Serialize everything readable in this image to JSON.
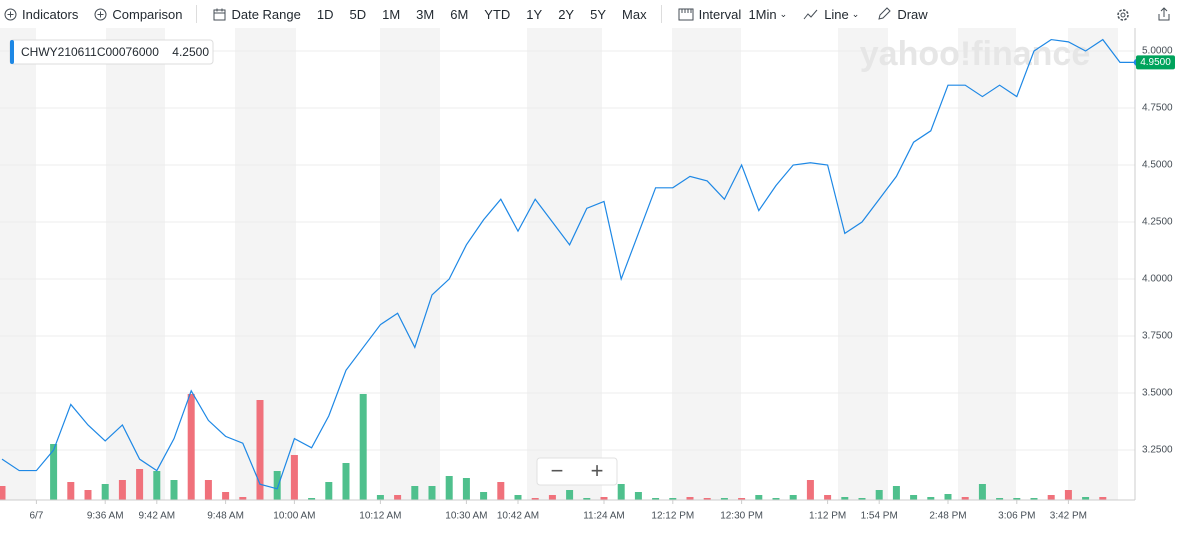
{
  "toolbar": {
    "indicators": "Indicators",
    "comparison": "Comparison",
    "date_range": "Date Range",
    "ranges": [
      "1D",
      "5D",
      "1M",
      "3M",
      "6M",
      "YTD",
      "1Y",
      "2Y",
      "5Y",
      "Max"
    ],
    "interval": "Interval",
    "interval_value": "1Min",
    "chart_type": "Line",
    "draw": "Draw"
  },
  "watermark": "yahoo!finance",
  "zoom_controls": [
    "−",
    "+"
  ],
  "chart_data": {
    "type": "line",
    "symbol": "CHWY210611C00076000",
    "hover_value": 4.25,
    "hover_value_label": "4.2500",
    "last_value": 4.95,
    "last_value_label": "4.9500",
    "categories": [
      null,
      null,
      "6/7",
      null,
      null,
      null,
      "9:36 AM",
      null,
      null,
      "9:42 AM",
      null,
      null,
      null,
      "9:48 AM",
      null,
      null,
      null,
      "10:00 AM",
      null,
      null,
      null,
      null,
      "10:12 AM",
      null,
      null,
      null,
      null,
      "10:30 AM",
      null,
      null,
      "10:42 AM",
      null,
      null,
      null,
      null,
      "11:24 AM",
      null,
      null,
      null,
      "12:12 PM",
      null,
      null,
      null,
      "12:30 PM",
      null,
      null,
      null,
      null,
      "1:12 PM",
      null,
      null,
      "1:54 PM",
      null,
      null,
      null,
      "2:48 PM",
      null,
      null,
      null,
      "3:06 PM",
      null,
      null,
      "3:42 PM",
      null,
      null,
      null,
      null
    ],
    "series": [
      {
        "color": "#1e88e5",
        "values": [
          3.21,
          3.16,
          3.16,
          3.25,
          3.45,
          3.36,
          3.29,
          3.36,
          3.21,
          3.16,
          3.3,
          3.51,
          3.38,
          3.31,
          3.28,
          3.1,
          3.08,
          3.3,
          3.26,
          3.4,
          3.6,
          3.7,
          3.8,
          3.85,
          3.7,
          3.93,
          4.0,
          4.15,
          4.26,
          4.35,
          4.21,
          4.35,
          4.25,
          4.15,
          4.31,
          4.34,
          4.0,
          4.2,
          4.4,
          4.4,
          4.45,
          4.43,
          4.35,
          4.5,
          4.3,
          4.41,
          4.5,
          4.51,
          4.5,
          4.2,
          4.25,
          4.35,
          4.45,
          4.6,
          4.65,
          4.85,
          4.85,
          4.8,
          4.85,
          4.8,
          5.0,
          5.05,
          5.04,
          5.0,
          5.05,
          4.95,
          4.95
        ]
      }
    ],
    "volume": {
      "values": [
        14,
        0,
        0,
        56,
        18,
        10,
        16,
        20,
        31,
        29,
        20,
        106,
        20,
        8,
        3,
        100,
        29,
        45,
        2,
        18,
        37,
        106,
        5,
        5,
        14,
        14,
        24,
        22,
        8,
        18,
        5,
        2,
        5,
        10,
        2,
        3,
        16,
        8,
        2,
        2,
        3,
        2,
        2,
        2,
        5,
        2,
        5,
        20,
        5,
        3,
        2,
        10,
        14,
        5,
        3,
        6,
        3,
        16,
        2,
        2,
        2,
        5,
        10,
        3,
        3,
        0,
        0
      ],
      "colors": [
        "#f0717b",
        "#f0717b",
        "#f0717b",
        "#4fc08d",
        "#f0717b",
        "#f0717b",
        "#4fc08d",
        "#f0717b",
        "#f0717b",
        "#4fc08d",
        "#4fc08d",
        "#f0717b",
        "#f0717b",
        "#f0717b",
        "#f0717b",
        "#f0717b",
        "#4fc08d",
        "#f0717b",
        "#4fc08d",
        "#4fc08d",
        "#4fc08d",
        "#4fc08d",
        "#4fc08d",
        "#f0717b",
        "#4fc08d",
        "#4fc08d",
        "#4fc08d",
        "#4fc08d",
        "#4fc08d",
        "#f0717b",
        "#4fc08d",
        "#f0717b",
        "#f0717b",
        "#4fc08d",
        "#4fc08d",
        "#f0717b",
        "#4fc08d",
        "#4fc08d",
        "#4fc08d",
        "#4fc08d",
        "#f0717b",
        "#f0717b",
        "#4fc08d",
        "#f0717b",
        "#4fc08d",
        "#4fc08d",
        "#4fc08d",
        "#f0717b",
        "#f0717b",
        "#4fc08d",
        "#4fc08d",
        "#4fc08d",
        "#4fc08d",
        "#4fc08d",
        "#4fc08d",
        "#4fc08d",
        "#f0717b",
        "#4fc08d",
        "#4fc08d",
        "#4fc08d",
        "#4fc08d",
        "#f0717b",
        "#f0717b",
        "#4fc08d",
        "#f0717b",
        "#4fc08d",
        "#4fc08d"
      ]
    },
    "ylim": [
      3.031,
      5.092
    ],
    "yticks": [
      {
        "value": 3.25,
        "label": "3.2500"
      },
      {
        "value": 3.5,
        "label": "3.5000"
      },
      {
        "value": 3.75,
        "label": "3.7500"
      },
      {
        "value": 4.0,
        "label": "4.0000"
      },
      {
        "value": 4.25,
        "label": "4.2500"
      },
      {
        "value": 4.5,
        "label": "4.5000"
      },
      {
        "value": 4.75,
        "label": "4.7500"
      },
      {
        "value": 5.0,
        "label": "5.0000"
      }
    ],
    "grid": true
  }
}
